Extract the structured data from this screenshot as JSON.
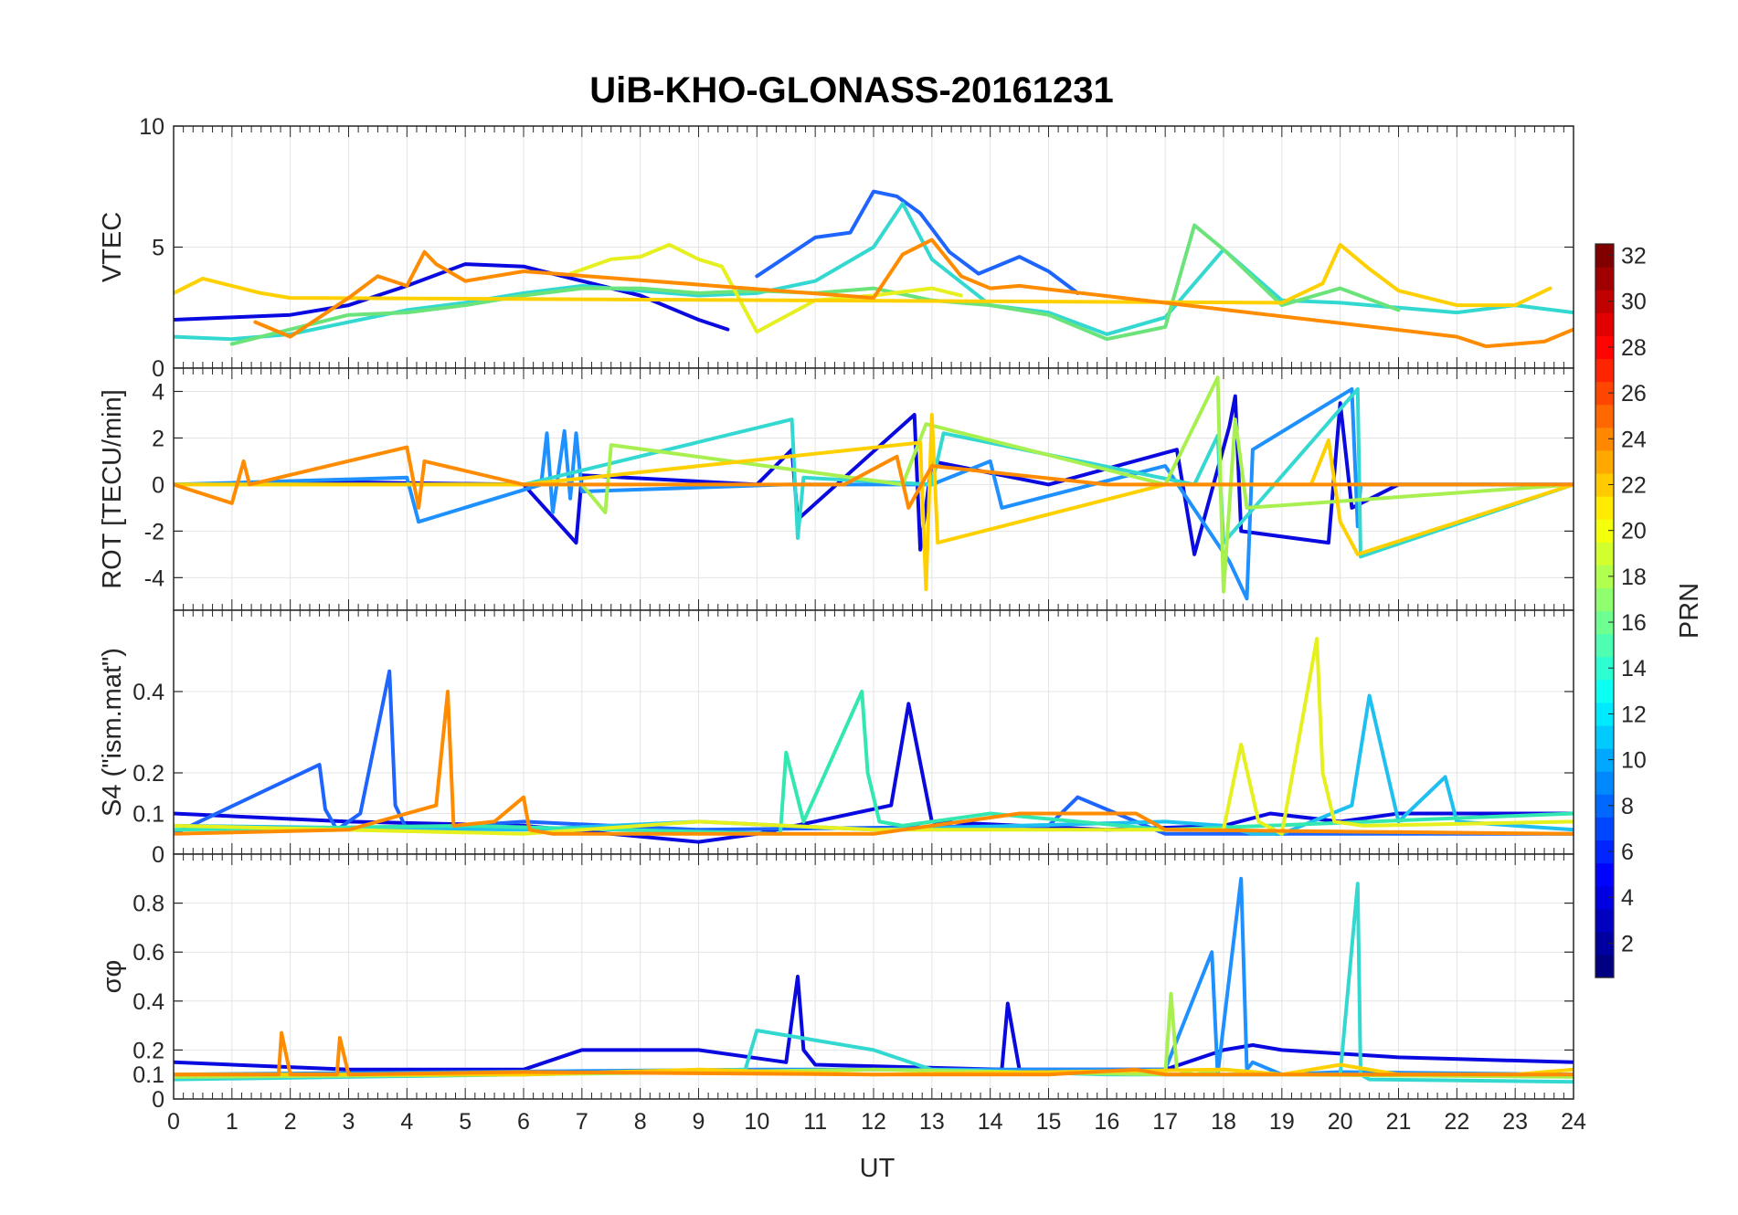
{
  "title": "UiB-KHO-GLONASS-20161231",
  "xlabel": "UT",
  "x_ticks": [
    "0",
    "1",
    "2",
    "3",
    "4",
    "5",
    "6",
    "7",
    "8",
    "9",
    "10",
    "11",
    "12",
    "13",
    "14",
    "15",
    "16",
    "17",
    "18",
    "19",
    "20",
    "21",
    "22",
    "23",
    "24"
  ],
  "colorbar": {
    "label": "PRN",
    "range": [
      1,
      32
    ],
    "ticks": [
      "2",
      "4",
      "6",
      "8",
      "10",
      "12",
      "14",
      "16",
      "18",
      "20",
      "22",
      "24",
      "26",
      "28",
      "30",
      "32"
    ],
    "colormap": "jet"
  },
  "chart_data": [
    {
      "type": "line",
      "panel": "VTEC",
      "ylabel": "VTEC",
      "xlim": [
        0,
        24
      ],
      "ylim": [
        0,
        10
      ],
      "y_ticks": [
        "0",
        "5",
        "10"
      ],
      "grid": true,
      "series": [
        {
          "color": "#0a0ae0",
          "x": [
            0,
            1,
            2,
            3,
            4,
            5,
            6,
            7,
            8,
            9,
            9.5
          ],
          "y": [
            2,
            2.1,
            2.2,
            2.6,
            3.4,
            4.3,
            4.2,
            3.6,
            3,
            2,
            1.6
          ]
        },
        {
          "color": "#1e64ff",
          "x": [
            10,
            11,
            11.6,
            12,
            12.4,
            12.8,
            13.3,
            13.8,
            14.5,
            15,
            15.5
          ],
          "y": [
            3.8,
            5.4,
            5.6,
            7.3,
            7.1,
            6.4,
            4.8,
            3.9,
            4.6,
            4,
            3.1
          ]
        },
        {
          "color": "#33d9d0",
          "x": [
            0,
            1,
            2,
            3,
            4,
            5,
            6,
            7,
            8,
            9,
            10,
            11,
            12,
            12.5,
            13,
            14,
            15,
            16,
            17,
            18,
            19,
            20,
            21,
            22,
            23,
            24
          ],
          "y": [
            1.3,
            1.2,
            1.4,
            1.9,
            2.4,
            2.7,
            3.1,
            3.4,
            3.2,
            3,
            3.1,
            3.6,
            5,
            6.8,
            4.5,
            2.6,
            2.3,
            1.4,
            2.1,
            4.9,
            2.8,
            2.7,
            2.5,
            2.3,
            2.6,
            2.3
          ]
        },
        {
          "color": "#6ae37a",
          "x": [
            1,
            2,
            3,
            4,
            5,
            6,
            7,
            8,
            9,
            10,
            11,
            12,
            13,
            14,
            15,
            16,
            17,
            17.5,
            18,
            19,
            20,
            21
          ],
          "y": [
            1,
            1.6,
            2.2,
            2.3,
            2.6,
            3,
            3.3,
            3.3,
            3.1,
            3.2,
            3.1,
            3.3,
            2.8,
            2.6,
            2.2,
            1.2,
            1.7,
            5.9,
            4.9,
            2.6,
            3.3,
            2.4
          ]
        },
        {
          "color": "#e6f01e",
          "x": [
            6.8,
            7.5,
            8,
            8.5,
            9,
            9.4,
            10,
            11,
            12,
            13,
            13.5
          ],
          "y": [
            3.9,
            4.5,
            4.6,
            5.1,
            4.5,
            4.2,
            1.5,
            2.8,
            3,
            3.3,
            3
          ]
        },
        {
          "color": "#ffd000",
          "x": [
            0,
            0.5,
            1,
            1.5,
            2,
            19,
            19.7,
            20,
            20.5,
            21,
            22,
            23,
            23.6
          ],
          "y": [
            3.1,
            3.7,
            3.4,
            3.1,
            2.9,
            2.7,
            3.5,
            5.1,
            4.1,
            3.2,
            2.6,
            2.6,
            3.3
          ]
        },
        {
          "color": "#ff8c00",
          "x": [
            1.4,
            2,
            2.5,
            3,
            3.5,
            4,
            4.3,
            4.5,
            5,
            5.5,
            6,
            12,
            12.5,
            13,
            13.5,
            14,
            14.5,
            22,
            22.5,
            23,
            23.5,
            24
          ],
          "y": [
            1.9,
            1.3,
            2.1,
            2.9,
            3.8,
            3.4,
            4.8,
            4.3,
            3.6,
            3.8,
            4,
            2.9,
            4.7,
            5.3,
            3.8,
            3.3,
            3.4,
            1.3,
            0.9,
            1,
            1.1,
            1.6
          ]
        }
      ]
    },
    {
      "type": "line",
      "panel": "ROT",
      "ylabel": "ROT [TECU/min]",
      "xlim": [
        0,
        24
      ],
      "ylim": [
        -5.4,
        5
      ],
      "y_ticks": [
        "-4",
        "-2",
        "0",
        "2",
        "4"
      ],
      "grid": true,
      "series": [
        {
          "color": "#0a0ae0",
          "x": [
            0,
            3,
            6,
            6.9,
            7,
            10,
            10.6,
            10.7,
            12.7,
            12.8,
            13,
            15,
            17.2,
            17.5,
            18.1,
            18.2,
            18.3,
            19.8,
            20,
            20.2,
            21,
            24
          ],
          "y": [
            0,
            0.1,
            0,
            -2.5,
            0.4,
            0,
            1.5,
            -1.5,
            3,
            -2.8,
            1,
            0,
            1.5,
            -3,
            2.5,
            3.8,
            -2,
            -2.5,
            3.5,
            -1,
            0,
            0
          ]
        },
        {
          "color": "#1e90ff",
          "x": [
            0,
            4,
            4.2,
            6.3,
            6.4,
            6.5,
            6.7,
            6.8,
            6.9,
            7,
            10.5,
            13,
            14,
            14.2,
            17,
            18.1,
            18.4,
            18.5,
            20.2,
            20.3,
            20.35,
            24
          ],
          "y": [
            0,
            0.3,
            -1.6,
            0,
            2.2,
            -1.2,
            2.3,
            -0.6,
            2.2,
            -0.3,
            0,
            0,
            1,
            -1,
            0.8,
            -3.3,
            -4.9,
            1.5,
            4.1,
            -1.8,
            0,
            0
          ]
        },
        {
          "color": "#33d9d0",
          "x": [
            0,
            6,
            10.6,
            10.7,
            10.8,
            13,
            13.2,
            17.5,
            17.9,
            18,
            20.3,
            20.35,
            24
          ],
          "y": [
            0,
            0,
            2.8,
            -2.3,
            0.3,
            0,
            2.2,
            0,
            2.1,
            -2.5,
            4.1,
            -3.1,
            0
          ]
        },
        {
          "color": "#a8f050",
          "x": [
            0,
            7,
            7.4,
            7.5,
            12.5,
            12.9,
            17,
            17.9,
            18,
            18.2,
            18.4,
            24
          ],
          "y": [
            0,
            0,
            -1.2,
            1.7,
            0,
            2.6,
            0,
            4.6,
            -4.6,
            2.8,
            -1,
            0
          ]
        },
        {
          "color": "#ffd000",
          "x": [
            0,
            6,
            12.8,
            12.9,
            13,
            13.1,
            17,
            19.5,
            19.8,
            20,
            20.3,
            24
          ],
          "y": [
            0,
            0,
            1.8,
            -4.5,
            3,
            -2.5,
            0,
            0,
            1.9,
            -1.6,
            -3,
            0
          ]
        },
        {
          "color": "#ff8c00",
          "x": [
            0,
            1,
            1.2,
            1.3,
            4,
            4.2,
            4.3,
            6,
            11.5,
            12.4,
            12.6,
            13,
            16,
            17,
            22,
            24
          ],
          "y": [
            0,
            -0.8,
            1,
            0,
            1.6,
            -1,
            1,
            0,
            0,
            1.2,
            -1,
            0.8,
            0,
            0,
            0,
            0
          ]
        }
      ]
    },
    {
      "type": "line",
      "panel": "S4",
      "ylabel": "S4 (\"ism.mat\")",
      "xlim": [
        0,
        24
      ],
      "ylim": [
        0,
        0.6
      ],
      "y_ticks": [
        "0",
        "0.1",
        "0.2",
        "0.4"
      ],
      "grid": true,
      "series": [
        {
          "color": "#0a0ae0",
          "x": [
            0,
            3,
            6,
            9,
            10,
            12.3,
            12.6,
            13,
            16,
            18,
            18.8,
            20,
            21,
            24
          ],
          "y": [
            0.1,
            0.08,
            0.07,
            0.03,
            0.05,
            0.12,
            0.37,
            0.08,
            0.06,
            0.07,
            0.1,
            0.08,
            0.1,
            0.1
          ]
        },
        {
          "color": "#1e64ff",
          "x": [
            0,
            2.5,
            2.6,
            2.8,
            3.2,
            3.7,
            3.8,
            4,
            6,
            9,
            15,
            15.5,
            17,
            24
          ],
          "y": [
            0.05,
            0.22,
            0.11,
            0.06,
            0.1,
            0.45,
            0.12,
            0.06,
            0.08,
            0.06,
            0.07,
            0.14,
            0.05,
            0.05
          ]
        },
        {
          "color": "#1ec0f0",
          "x": [
            0,
            6,
            9,
            12,
            17,
            18,
            18.5,
            19,
            20.2,
            20.5,
            21,
            21.8,
            22,
            24
          ],
          "y": [
            0.07,
            0.06,
            0.08,
            0.06,
            0.08,
            0.07,
            0.05,
            0.05,
            0.12,
            0.39,
            0.08,
            0.19,
            0.08,
            0.06
          ]
        },
        {
          "color": "#33e8b0",
          "x": [
            0,
            5,
            10.4,
            10.5,
            10.8,
            11.8,
            11.9,
            12.1,
            12.5,
            14,
            17,
            24
          ],
          "y": [
            0.06,
            0.07,
            0.05,
            0.25,
            0.08,
            0.4,
            0.2,
            0.08,
            0.07,
            0.1,
            0.06,
            0.1
          ]
        },
        {
          "color": "#e6f01e",
          "x": [
            0,
            6,
            9,
            12,
            18,
            18.3,
            18.6,
            19,
            19.6,
            19.7,
            19.9,
            20.4,
            24
          ],
          "y": [
            0.07,
            0.05,
            0.08,
            0.06,
            0.06,
            0.27,
            0.08,
            0.05,
            0.53,
            0.2,
            0.08,
            0.07,
            0.08
          ]
        },
        {
          "color": "#ff8c00",
          "x": [
            0,
            3,
            4.5,
            4.7,
            4.8,
            5.5,
            6,
            6.1,
            6.5,
            12,
            13,
            14.5,
            16.5,
            17,
            24
          ],
          "y": [
            0.05,
            0.06,
            0.12,
            0.4,
            0.07,
            0.08,
            0.14,
            0.06,
            0.05,
            0.05,
            0.07,
            0.1,
            0.1,
            0.06,
            0.05
          ]
        }
      ]
    },
    {
      "type": "line",
      "panel": "sigma_phi",
      "ylabel": "σφ",
      "xlim": [
        0,
        24
      ],
      "ylim": [
        0,
        1
      ],
      "y_ticks": [
        "0",
        "0.1",
        "0.2",
        "0.4",
        "0.6",
        "0.8"
      ],
      "grid": true,
      "series": [
        {
          "color": "#0a0ae0",
          "x": [
            0,
            3,
            6,
            7,
            9,
            10.5,
            10.7,
            10.8,
            11,
            14.2,
            14.3,
            14.5,
            17,
            18,
            18.5,
            19,
            21,
            24
          ],
          "y": [
            0.15,
            0.12,
            0.12,
            0.2,
            0.2,
            0.15,
            0.5,
            0.2,
            0.14,
            0.12,
            0.39,
            0.12,
            0.12,
            0.2,
            0.22,
            0.2,
            0.17,
            0.15
          ]
        },
        {
          "color": "#1e90ff",
          "x": [
            0,
            5,
            10,
            17,
            17.8,
            17.9,
            18,
            18.3,
            18.4,
            18.5,
            19,
            20,
            24
          ],
          "y": [
            0.1,
            0.11,
            0.12,
            0.12,
            0.6,
            0.1,
            0.3,
            0.9,
            0.12,
            0.15,
            0.1,
            0.11,
            0.1
          ]
        },
        {
          "color": "#33d9d0",
          "x": [
            0,
            6,
            9.8,
            10,
            12,
            13,
            16,
            20,
            20.3,
            20.35,
            20.5,
            24
          ],
          "y": [
            0.08,
            0.1,
            0.12,
            0.28,
            0.2,
            0.12,
            0.1,
            0.1,
            0.88,
            0.1,
            0.08,
            0.07
          ]
        },
        {
          "color": "#a8f050",
          "x": [
            0,
            6,
            12,
            17,
            17.1,
            17.2,
            17.5,
            18,
            19,
            24
          ],
          "y": [
            0.09,
            0.1,
            0.12,
            0.1,
            0.43,
            0.12,
            0.1,
            0.12,
            0.1,
            0.09
          ]
        },
        {
          "color": "#ffd000",
          "x": [
            0,
            6,
            9,
            12,
            18,
            19,
            20,
            21,
            23,
            24
          ],
          "y": [
            0.1,
            0.1,
            0.12,
            0.1,
            0.12,
            0.1,
            0.14,
            0.1,
            0.1,
            0.12
          ]
        },
        {
          "color": "#ff8c00",
          "x": [
            0,
            1.8,
            1.85,
            2,
            2.8,
            2.85,
            3,
            6,
            12,
            15,
            16.5,
            17,
            24
          ],
          "y": [
            0.1,
            0.1,
            0.27,
            0.1,
            0.1,
            0.25,
            0.1,
            0.11,
            0.1,
            0.1,
            0.12,
            0.1,
            0.1
          ]
        }
      ]
    }
  ]
}
